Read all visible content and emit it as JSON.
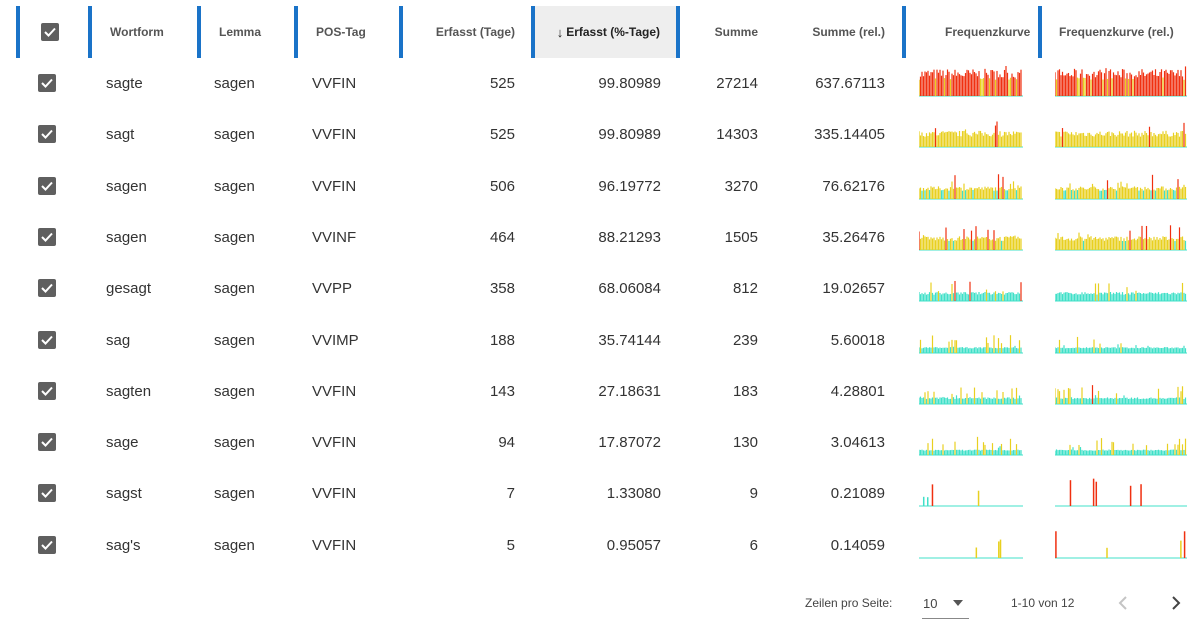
{
  "table": {
    "columns": [
      {
        "key": "select",
        "label": ""
      },
      {
        "key": "wortform",
        "label": "Wortform"
      },
      {
        "key": "lemma",
        "label": "Lemma"
      },
      {
        "key": "pos",
        "label": "POS-Tag"
      },
      {
        "key": "erfasst",
        "label": "Erfasst (Tage)"
      },
      {
        "key": "erfasst_pct",
        "label": "Erfasst (%-Tage)",
        "sort_indicator": "↓",
        "sorted": "descending"
      },
      {
        "key": "summe",
        "label": "Summe"
      },
      {
        "key": "summe_rel",
        "label": "Summe (rel.)"
      },
      {
        "key": "freq",
        "label": "Frequenzkurve"
      },
      {
        "key": "freq_rel",
        "label": "Frequenzkurve (rel.)"
      }
    ],
    "select_all_checked": true,
    "rows": [
      {
        "checked": true,
        "wortform": "sagte",
        "lemma": "sagen",
        "pos": "VVFIN",
        "erfasst": "525",
        "erfasst_pct": "99.80989",
        "summe": "27214",
        "summe_rel": "637.67113",
        "level": 1.0,
        "spikes": 0.15
      },
      {
        "checked": true,
        "wortform": "sagt",
        "lemma": "sagen",
        "pos": "VVFIN",
        "erfasst": "525",
        "erfasst_pct": "99.80989",
        "summe": "14303",
        "summe_rel": "335.14405",
        "level": 0.55,
        "spikes": 0.2
      },
      {
        "checked": true,
        "wortform": "sagen",
        "lemma": "sagen",
        "pos": "VVFIN",
        "erfasst": "506",
        "erfasst_pct": "96.19772",
        "summe": "3270",
        "summe_rel": "76.62176",
        "level": 0.4,
        "spikes": 0.3
      },
      {
        "checked": true,
        "wortform": "sagen",
        "lemma": "sagen",
        "pos": "VVINF",
        "erfasst": "464",
        "erfasst_pct": "88.21293",
        "summe": "1505",
        "summe_rel": "35.26476",
        "level": 0.45,
        "spikes": 0.5
      },
      {
        "checked": true,
        "wortform": "gesagt",
        "lemma": "sagen",
        "pos": "VVPP",
        "erfasst": "358",
        "erfasst_pct": "68.06084",
        "summe": "812",
        "summe_rel": "19.02657",
        "level": 0.25,
        "spikes": 0.5
      },
      {
        "checked": true,
        "wortform": "sag",
        "lemma": "sagen",
        "pos": "VVIMP",
        "erfasst": "188",
        "erfasst_pct": "35.74144",
        "summe": "239",
        "summe_rel": "5.60018",
        "level": 0.12,
        "spikes": 0.6
      },
      {
        "checked": true,
        "wortform": "sagten",
        "lemma": "sagen",
        "pos": "VVFIN",
        "erfasst": "143",
        "erfasst_pct": "27.18631",
        "summe": "183",
        "summe_rel": "4.28801",
        "level": 0.15,
        "spikes": 0.8
      },
      {
        "checked": true,
        "wortform": "sage",
        "lemma": "sagen",
        "pos": "VVFIN",
        "erfasst": "94",
        "erfasst_pct": "17.87072",
        "summe": "130",
        "summe_rel": "3.04613",
        "level": 0.1,
        "spikes": 0.8
      },
      {
        "checked": true,
        "wortform": "sagst",
        "lemma": "sagen",
        "pos": "VVFIN",
        "erfasst": "7",
        "erfasst_pct": "1.33080",
        "summe": "9",
        "summe_rel": "0.21089",
        "level": 0.0,
        "spikes": 1.0
      },
      {
        "checked": true,
        "wortform": "sag's",
        "lemma": "sagen",
        "pos": "VVFIN",
        "erfasst": "5",
        "erfasst_pct": "0.95057",
        "summe": "6",
        "summe_rel": "0.14059",
        "level": 0.0,
        "spikes": 1.0
      }
    ]
  },
  "footer": {
    "rows_per_page_label": "Zeilen pro Seite:",
    "rows_per_page_value": "10",
    "range_text": "1-10 von 12"
  },
  "icons": {
    "sort": "arrow-down-icon",
    "dropdown": "caret-down-icon",
    "prev": "chevron-left-icon",
    "next": "chevron-right-icon",
    "checkbox": "checkbox-checked-icon"
  },
  "colors": {
    "separator": "#1a73c8",
    "checkbox": "#5f5f5f",
    "sorted_header_bg": "#eeeeee",
    "spark_low": "#40e0c8",
    "spark_mid": "#e8d020",
    "spark_high": "#f03010"
  }
}
